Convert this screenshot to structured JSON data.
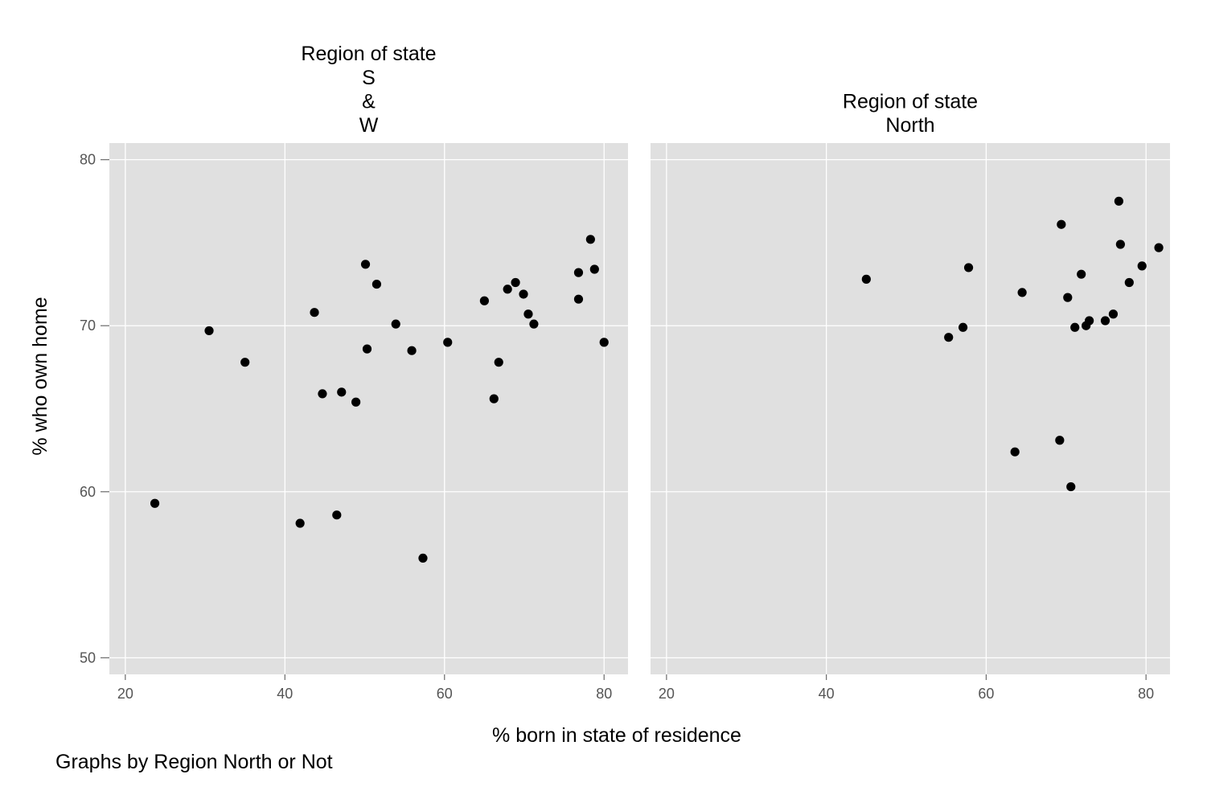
{
  "chart_data": {
    "type": "scatter",
    "xlabel": "% born in state of residence",
    "ylabel": "% who own home",
    "note": "Graphs by Region North or Not",
    "xlim": [
      18,
      83
    ],
    "ylim": [
      49,
      81
    ],
    "xticks": [
      "20",
      "40",
      "60",
      "80"
    ],
    "yticks": [
      "50",
      "60",
      "70",
      "80"
    ],
    "grid": true,
    "panels": [
      {
        "title_lines": [
          "Region of state",
          "S",
          "&",
          "W"
        ],
        "points": [
          {
            "x": 23.7,
            "y": 59.3
          },
          {
            "x": 30.5,
            "y": 69.7
          },
          {
            "x": 35.0,
            "y": 67.8
          },
          {
            "x": 41.9,
            "y": 58.1
          },
          {
            "x": 43.7,
            "y": 70.8
          },
          {
            "x": 44.7,
            "y": 65.9
          },
          {
            "x": 46.5,
            "y": 58.6
          },
          {
            "x": 47.1,
            "y": 66.0
          },
          {
            "x": 48.9,
            "y": 65.4
          },
          {
            "x": 50.1,
            "y": 73.7
          },
          {
            "x": 50.3,
            "y": 68.6
          },
          {
            "x": 51.5,
            "y": 72.5
          },
          {
            "x": 53.9,
            "y": 70.1
          },
          {
            "x": 55.9,
            "y": 68.5
          },
          {
            "x": 57.3,
            "y": 56.0
          },
          {
            "x": 60.4,
            "y": 69.0
          },
          {
            "x": 65.0,
            "y": 71.5
          },
          {
            "x": 66.2,
            "y": 65.6
          },
          {
            "x": 66.8,
            "y": 67.8
          },
          {
            "x": 67.9,
            "y": 72.2
          },
          {
            "x": 68.9,
            "y": 72.6
          },
          {
            "x": 69.9,
            "y": 71.9
          },
          {
            "x": 70.5,
            "y": 70.7
          },
          {
            "x": 71.2,
            "y": 70.1
          },
          {
            "x": 76.8,
            "y": 73.2
          },
          {
            "x": 76.8,
            "y": 71.6
          },
          {
            "x": 78.3,
            "y": 75.2
          },
          {
            "x": 78.8,
            "y": 73.4
          },
          {
            "x": 80.0,
            "y": 69.0
          }
        ]
      },
      {
        "title_lines": [
          "Region of state",
          "North"
        ],
        "points": [
          {
            "x": 45.0,
            "y": 72.8
          },
          {
            "x": 55.3,
            "y": 69.3
          },
          {
            "x": 57.1,
            "y": 69.9
          },
          {
            "x": 57.8,
            "y": 73.5
          },
          {
            "x": 63.6,
            "y": 62.4
          },
          {
            "x": 64.5,
            "y": 72.0
          },
          {
            "x": 69.2,
            "y": 63.1
          },
          {
            "x": 69.4,
            "y": 76.1
          },
          {
            "x": 70.2,
            "y": 71.7
          },
          {
            "x": 70.6,
            "y": 60.3
          },
          {
            "x": 71.1,
            "y": 69.9
          },
          {
            "x": 71.9,
            "y": 73.1
          },
          {
            "x": 72.5,
            "y": 70.0
          },
          {
            "x": 72.9,
            "y": 70.3
          },
          {
            "x": 74.9,
            "y": 70.3
          },
          {
            "x": 75.9,
            "y": 70.7
          },
          {
            "x": 76.6,
            "y": 77.5
          },
          {
            "x": 76.8,
            "y": 74.9
          },
          {
            "x": 77.9,
            "y": 72.6
          },
          {
            "x": 79.5,
            "y": 73.6
          },
          {
            "x": 81.6,
            "y": 74.7
          }
        ]
      }
    ]
  }
}
